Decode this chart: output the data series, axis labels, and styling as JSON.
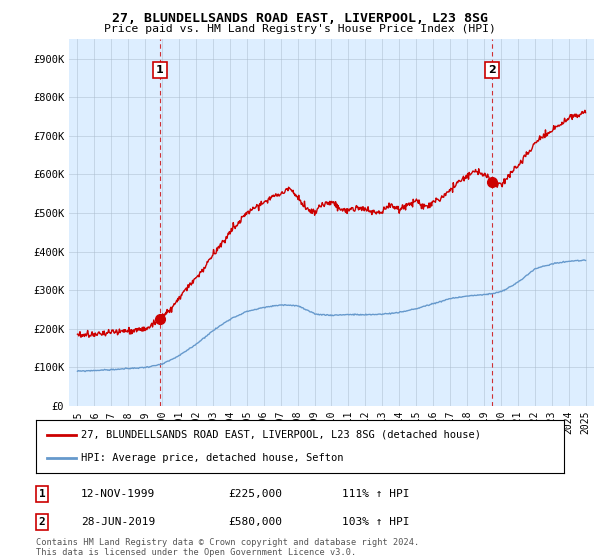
{
  "title": "27, BLUNDELLSANDS ROAD EAST, LIVERPOOL, L23 8SG",
  "subtitle": "Price paid vs. HM Land Registry's House Price Index (HPI)",
  "legend_label_red": "27, BLUNDELLSANDS ROAD EAST, LIVERPOOL, L23 8SG (detached house)",
  "legend_label_blue": "HPI: Average price, detached house, Sefton",
  "footnote": "Contains HM Land Registry data © Crown copyright and database right 2024.\nThis data is licensed under the Open Government Licence v3.0.",
  "table_rows": [
    {
      "num": "1",
      "date": "12-NOV-1999",
      "price": "£225,000",
      "hpi": "111% ↑ HPI"
    },
    {
      "num": "2",
      "date": "28-JUN-2019",
      "price": "£580,000",
      "hpi": "103% ↑ HPI"
    }
  ],
  "red_color": "#cc0000",
  "blue_color": "#6699cc",
  "plot_bg_color": "#ddeeff",
  "dashed_color": "#cc0000",
  "point1_x": 1999.87,
  "point1_y": 225000,
  "point2_x": 2019.49,
  "point2_y": 580000,
  "ylim": [
    0,
    950000
  ],
  "xlim_start": 1994.5,
  "xlim_end": 2025.5,
  "yticks": [
    0,
    100000,
    200000,
    300000,
    400000,
    500000,
    600000,
    700000,
    800000,
    900000
  ],
  "ytick_labels": [
    "£0",
    "£100K",
    "£200K",
    "£300K",
    "£400K",
    "£500K",
    "£600K",
    "£700K",
    "£800K",
    "£900K"
  ],
  "xticks": [
    1995,
    1996,
    1997,
    1998,
    1999,
    2000,
    2001,
    2002,
    2003,
    2004,
    2005,
    2006,
    2007,
    2008,
    2009,
    2010,
    2011,
    2012,
    2013,
    2014,
    2015,
    2016,
    2017,
    2018,
    2019,
    2020,
    2021,
    2022,
    2023,
    2024,
    2025
  ],
  "background_color": "#ffffff",
  "grid_color": "#aabbcc"
}
